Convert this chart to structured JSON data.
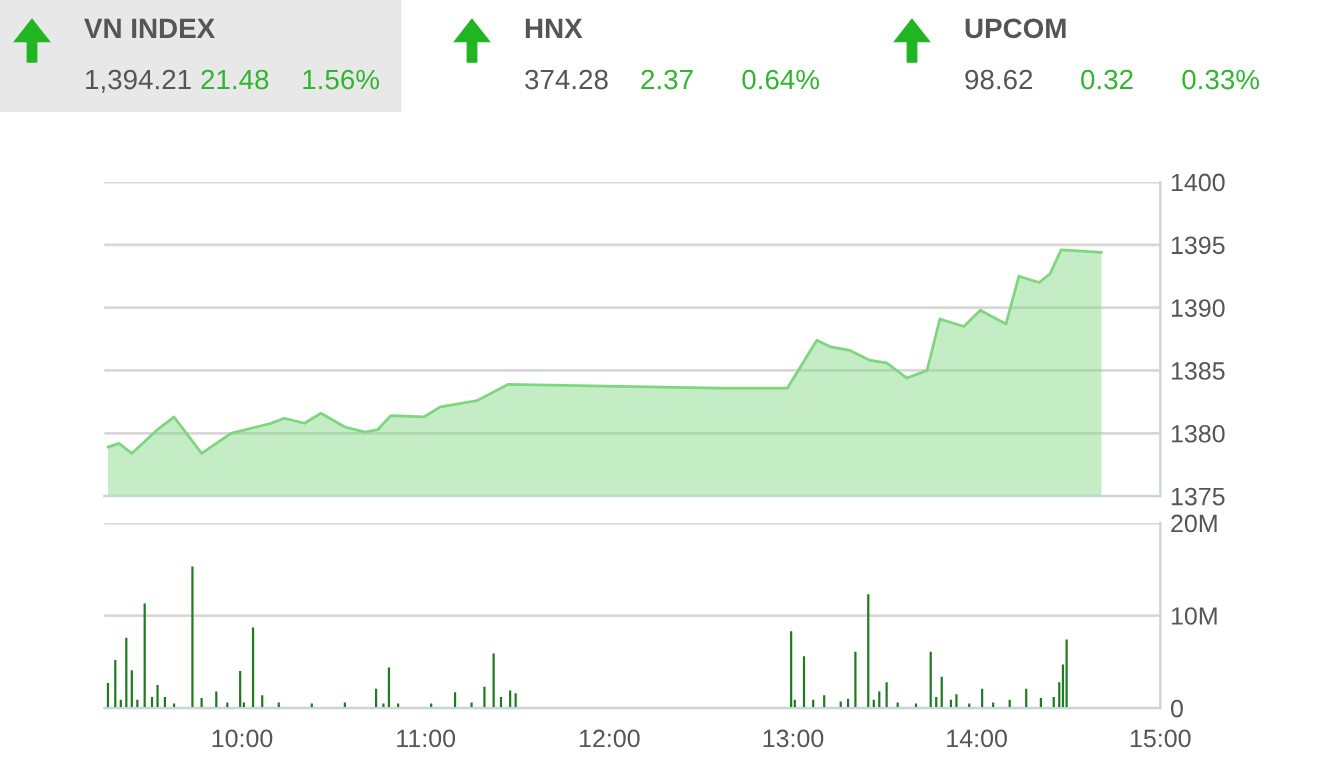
{
  "chart_data": [
    {
      "type": "other",
      "annotations": [
        "VN INDEX",
        "1,394.21",
        "21.48",
        "1.56%",
        "HNX",
        "374.28",
        "2.37",
        "0.64%",
        "UPCOM",
        "98.62",
        "0.32",
        "0.33%"
      ]
    },
    {
      "type": "area",
      "tick_labels": "y",
      "grid": "y",
      "xlim": [
        9.25,
        15
      ],
      "ylim": [
        1375,
        1400
      ],
      "yticks": [
        1375,
        1380,
        1385,
        1390,
        1395,
        1400
      ],
      "series": [
        {
          "color": "#7ed67e",
          "x": [
            9.27,
            9.33,
            9.4,
            9.54,
            9.63,
            9.78,
            9.94,
            10.16,
            10.23,
            10.34,
            10.43,
            10.56,
            10.67,
            10.74,
            10.81,
            10.99,
            11.08,
            11.28,
            11.45,
            12.59,
            12.97,
            13.13,
            13.2,
            13.31,
            13.42,
            13.51,
            13.62,
            13.73,
            13.8,
            13.93,
            14.02,
            14.07,
            14.16,
            14.23,
            14.34,
            14.4,
            14.46,
            14.68
          ],
          "values": [
            1378.9,
            1379.2,
            1378.4,
            1380.3,
            1381.3,
            1378.4,
            1380.0,
            1380.8,
            1381.2,
            1380.8,
            1381.6,
            1380.5,
            1380.1,
            1380.3,
            1381.4,
            1381.3,
            1382.1,
            1382.6,
            1383.9,
            1383.6,
            1383.6,
            1387.4,
            1386.9,
            1386.6,
            1385.8,
            1385.6,
            1384.4,
            1385.0,
            1389.1,
            1388.5,
            1389.8,
            1389.4,
            1388.7,
            1392.5,
            1392.0,
            1392.7,
            1394.6,
            1394.4
          ]
        }
      ]
    },
    {
      "type": "bar",
      "grid": "y",
      "xlim": [
        9.25,
        15
      ],
      "ylim": [
        0,
        20
      ],
      "xticks": [
        {
          "value": 10,
          "label": "10:00"
        },
        {
          "value": 11,
          "label": "11:00"
        },
        {
          "value": 12,
          "label": "12:00"
        },
        {
          "value": 13,
          "label": "13:00"
        },
        {
          "value": 14,
          "label": "14:00"
        },
        {
          "value": 15,
          "label": "15:00"
        }
      ],
      "yticks": [
        0,
        {
          "value": 10,
          "label": "10M"
        },
        {
          "value": 20,
          "label": "20M"
        }
      ],
      "series": [
        {
          "color": "#1e7b1e",
          "x": [
            9.27,
            9.31,
            9.34,
            9.37,
            9.4,
            9.43,
            9.47,
            9.51,
            9.54,
            9.58,
            9.63,
            9.73,
            9.78,
            9.86,
            9.92,
            9.99,
            10.01,
            10.06,
            10.11,
            10.2,
            10.38,
            10.56,
            10.73,
            10.77,
            10.8,
            10.85,
            11.03,
            11.16,
            11.25,
            11.32,
            11.37,
            11.41,
            11.46,
            11.49,
            12.99,
            13.01,
            13.06,
            13.11,
            13.17,
            13.26,
            13.3,
            13.34,
            13.41,
            13.44,
            13.47,
            13.51,
            13.57,
            13.67,
            13.75,
            13.78,
            13.81,
            13.86,
            13.89,
            13.96,
            14.03,
            14.09,
            14.18,
            14.27,
            14.35,
            14.42,
            14.45,
            14.47,
            14.49
          ],
          "values": [
            2.7,
            5.2,
            0.9,
            7.6,
            4.1,
            0.9,
            11.3,
            1.2,
            2.5,
            1.2,
            0.5,
            15.3,
            1.1,
            1.8,
            0.6,
            4.0,
            0.6,
            8.7,
            1.4,
            0.6,
            0.5,
            0.6,
            2.1,
            0.5,
            4.4,
            0.5,
            0.5,
            1.7,
            0.6,
            2.3,
            5.9,
            1.2,
            1.9,
            1.6,
            8.3,
            0.9,
            5.6,
            0.9,
            1.4,
            0.7,
            1.0,
            6.1,
            12.3,
            0.9,
            1.8,
            2.8,
            0.6,
            0.5,
            6.1,
            1.2,
            3.4,
            0.9,
            1.5,
            0.5,
            2.1,
            0.6,
            0.9,
            2.1,
            1.1,
            1.2,
            2.8,
            4.7,
            7.4
          ]
        }
      ]
    }
  ]
}
